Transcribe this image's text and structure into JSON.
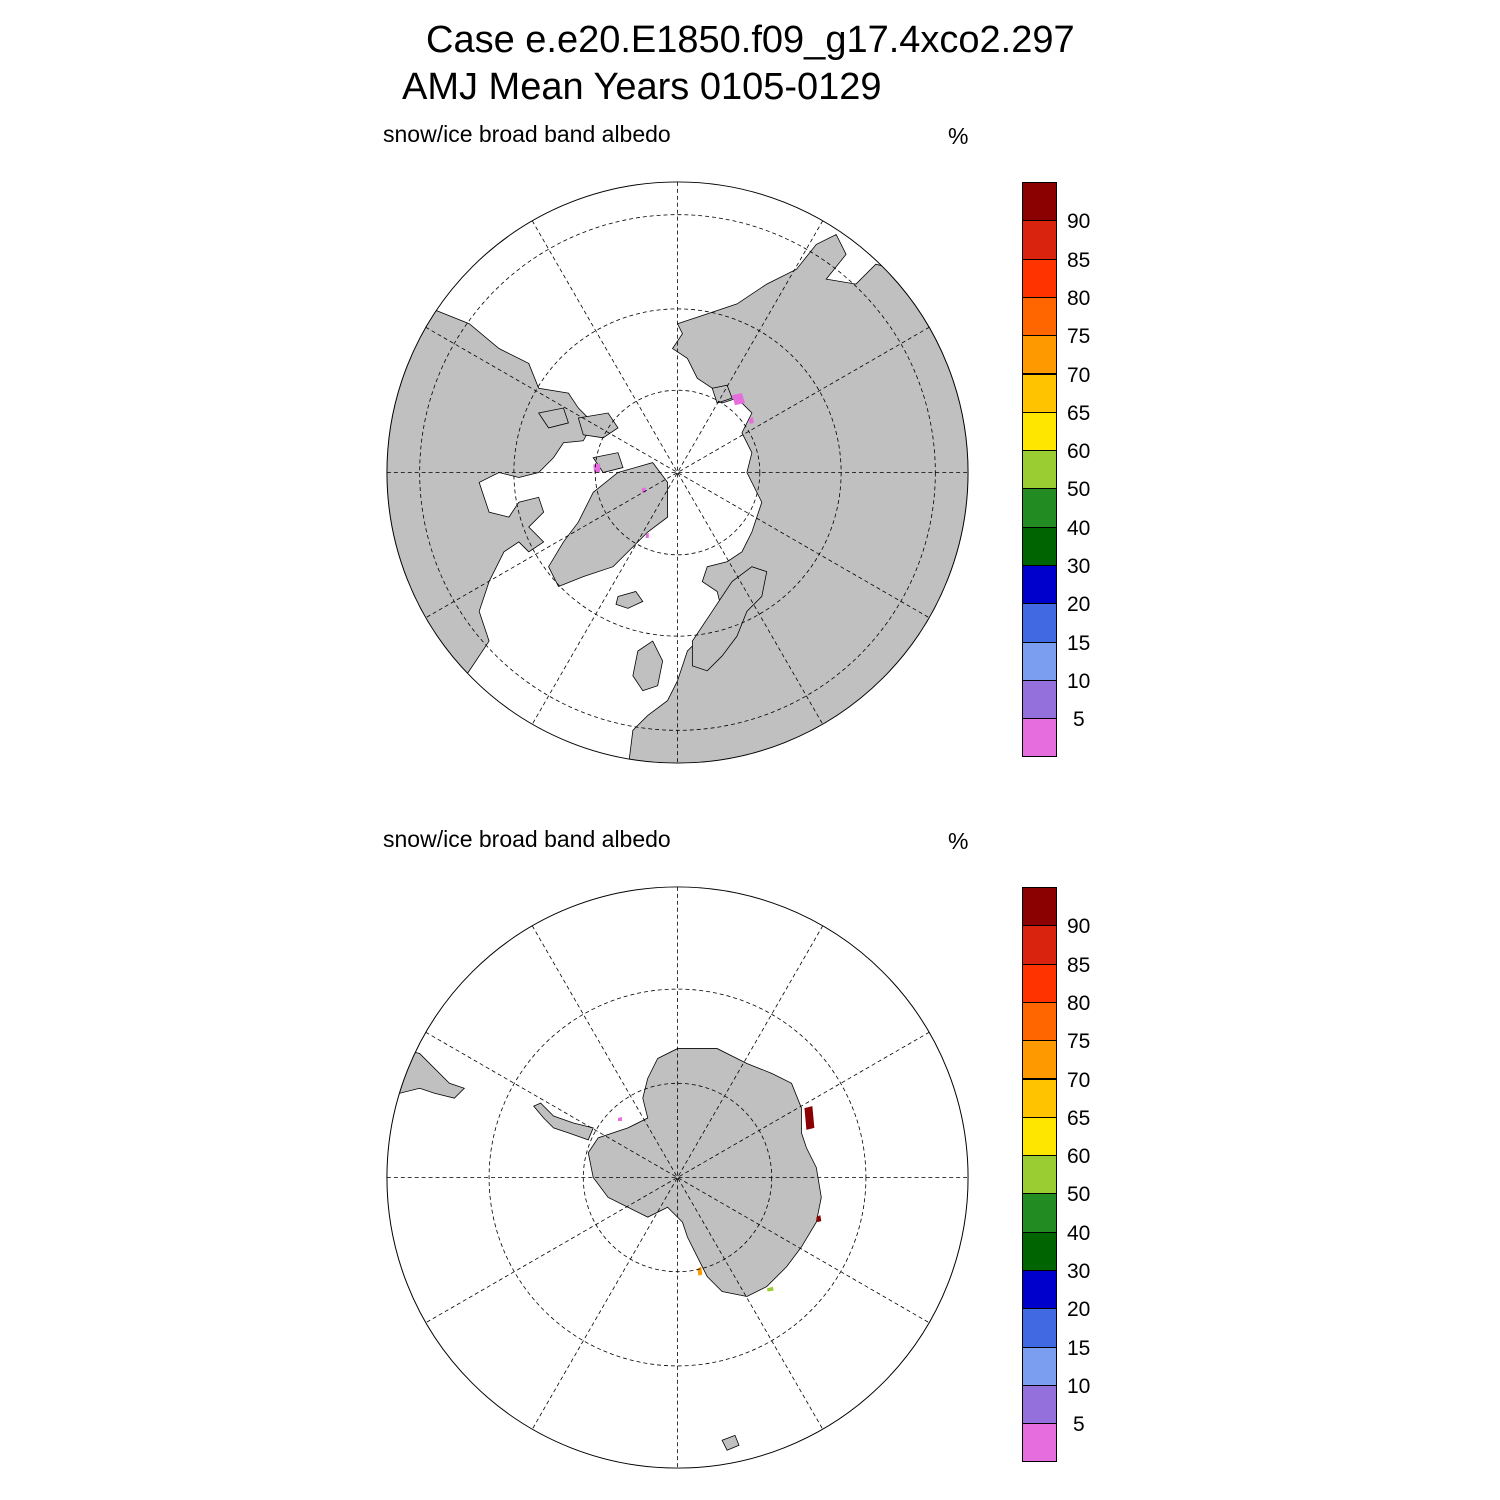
{
  "title": {
    "line1": "Case e.e20.E1850.f09_g17.4xco2.297",
    "line2": "AMJ Mean   Years 0105-0129"
  },
  "panels": [
    {
      "id": "north",
      "variable_label": "snow/ice broad band albedo",
      "units_label": "%"
    },
    {
      "id": "south",
      "variable_label": "snow/ice broad band albedo",
      "units_label": "%"
    }
  ],
  "colorbar": {
    "levels": [
      "90",
      "85",
      "80",
      "75",
      "70",
      "65",
      "60",
      "50",
      "40",
      "30",
      "20",
      "15",
      "10",
      "5"
    ],
    "colors_top_to_bottom": [
      "#8b0000",
      "#d9230f",
      "#ff3300",
      "#ff6600",
      "#ff9900",
      "#ffc300",
      "#ffe600",
      "#9acd32",
      "#228b22",
      "#006400",
      "#0000cd",
      "#4169e1",
      "#7b9ef0",
      "#9370db",
      "#e66ddd"
    ]
  },
  "map_style": {
    "land_color": "#c0c0c0",
    "ocean_color": "#ffffff",
    "grid_style": "dashed"
  }
}
